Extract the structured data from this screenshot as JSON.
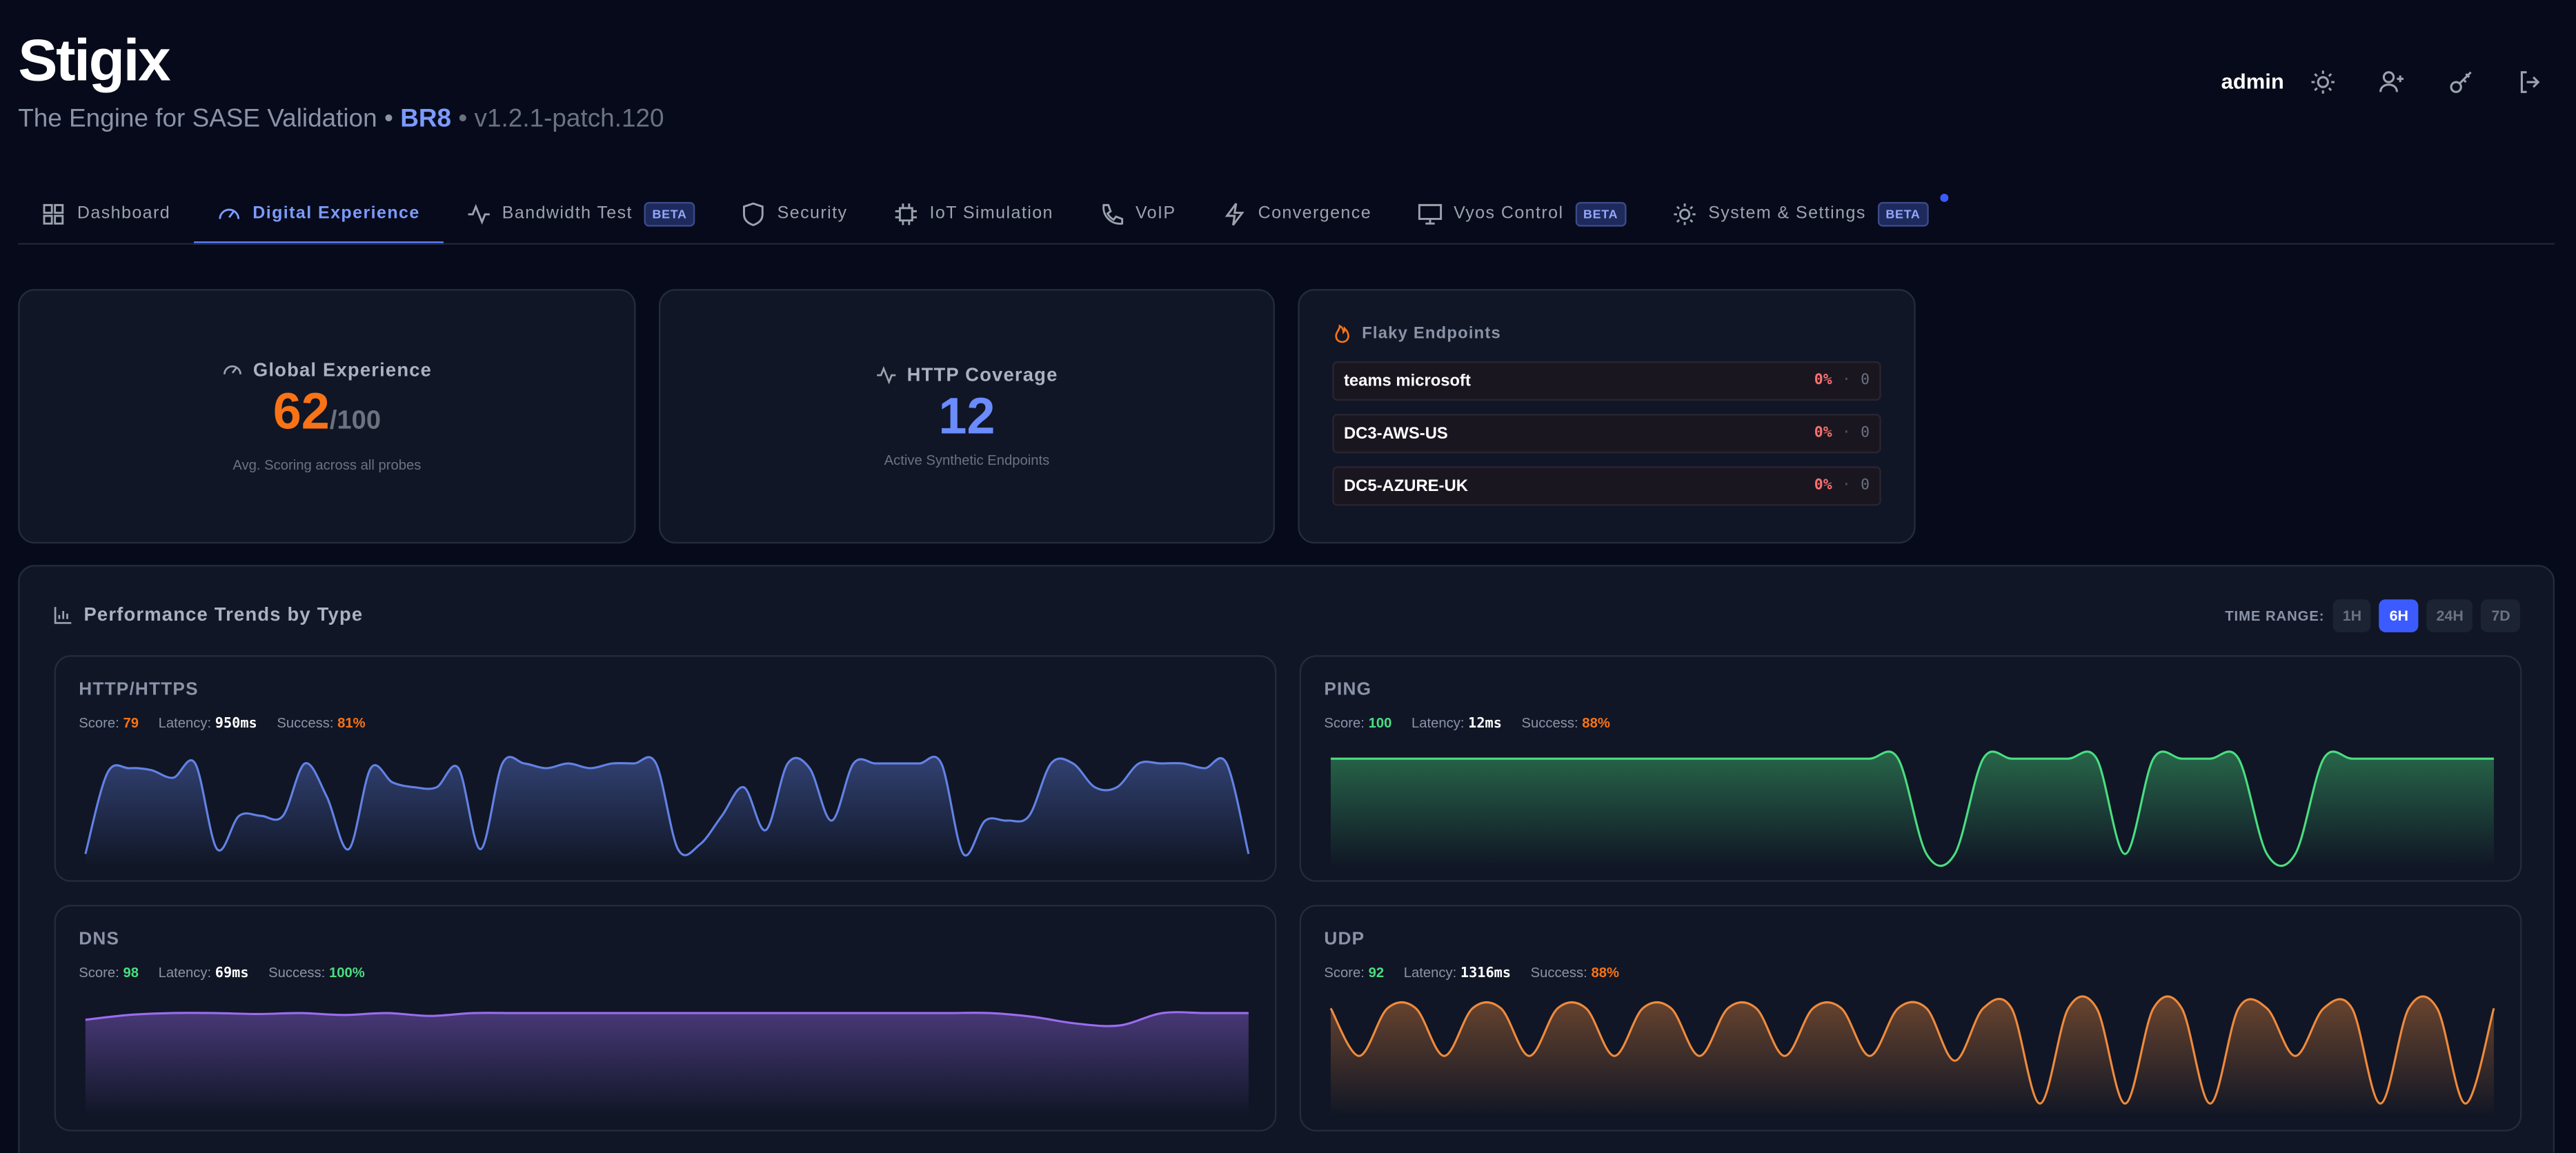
{
  "header": {
    "logo": "Stigix",
    "tagline": "The Engine for SASE Validation",
    "separator": "•",
    "site": "BR8",
    "version": "v1.2.1-patch.120",
    "user": "admin"
  },
  "nav": {
    "tabs": [
      {
        "label": "Dashboard"
      },
      {
        "label": "Digital Experience",
        "active": true
      },
      {
        "label": "Bandwidth Test",
        "badge": "BETA"
      },
      {
        "label": "Security"
      },
      {
        "label": "IoT Simulation"
      },
      {
        "label": "VoIP"
      },
      {
        "label": "Convergence"
      },
      {
        "label": "Vyos Control",
        "badge": "BETA"
      },
      {
        "label": "System & Settings",
        "badge": "BETA",
        "notification": true
      }
    ]
  },
  "summary": {
    "global_experience": {
      "title": "Global Experience",
      "score": 62,
      "max": "/100",
      "caption": "Avg. Scoring across all probes"
    },
    "http_coverage": {
      "title": "HTTP Coverage",
      "count": 12,
      "caption": "Active Synthetic Endpoints"
    },
    "flaky_endpoints": {
      "title": "Flaky Endpoints",
      "rate_separator": "·",
      "rows": [
        {
          "name": "teams microsoft",
          "rate": "0%",
          "count": 0
        },
        {
          "name": "DC3-AWS-US",
          "rate": "0%",
          "count": 0
        },
        {
          "name": "DC5-AZURE-UK",
          "rate": "0%",
          "count": 0
        }
      ]
    }
  },
  "performance": {
    "title": "Performance Trends by Type",
    "time_range_label": "TIME RANGE:",
    "ranges": [
      {
        "label": "1H"
      },
      {
        "label": "6H",
        "selected": true
      },
      {
        "label": "24H"
      },
      {
        "label": "7D"
      }
    ],
    "metric_labels": {
      "score": "Score:",
      "latency": "Latency:",
      "success": "Success:"
    },
    "panels": [
      {
        "name": "HTTP/HTTPS",
        "score": 79,
        "latency": "950ms",
        "success": "81%",
        "score_color": "#f97316",
        "success_color": "#f97316",
        "color": "#6382e6",
        "ylim": [
          0,
          100
        ],
        "values": [
          0,
          85,
          90,
          88,
          80,
          95,
          5,
          40,
          40,
          40,
          95,
          60,
          5,
          90,
          75,
          70,
          70,
          90,
          5,
          95,
          95,
          90,
          95,
          90,
          95,
          95,
          95,
          5,
          10,
          40,
          70,
          25,
          95,
          90,
          35,
          95,
          95,
          95,
          95,
          95,
          0,
          35,
          35,
          40,
          95,
          95,
          70,
          70,
          95,
          95,
          95,
          90,
          95,
          0
        ]
      },
      {
        "name": "PING",
        "score": 100,
        "latency": "12ms",
        "success": "88%",
        "score_color": "#4ade80",
        "success_color": "#f97316",
        "color": "#4ade80",
        "ylim": [
          0,
          100
        ],
        "values": [
          100,
          100,
          100,
          100,
          100,
          100,
          100,
          100,
          100,
          100,
          100,
          100,
          100,
          100,
          100,
          100,
          100,
          100,
          100,
          100,
          100,
          0,
          0,
          100,
          100,
          100,
          100,
          100,
          0,
          100,
          100,
          100,
          100,
          0,
          0,
          100,
          100,
          100,
          100,
          100,
          100,
          100
        ]
      },
      {
        "name": "DNS",
        "score": 98,
        "latency": "69ms",
        "success": "100%",
        "score_color": "#4ade80",
        "success_color": "#4ade80",
        "color": "#9b6cf0",
        "ylim": [
          0,
          100
        ],
        "values": [
          88,
          93,
          95,
          95,
          94,
          95,
          93,
          95,
          92,
          95,
          95,
          95,
          95,
          95,
          95,
          95,
          95,
          95,
          95,
          95,
          95,
          95,
          91,
          84,
          82,
          95,
          95,
          95
        ]
      },
      {
        "name": "UDP",
        "score": 92,
        "latency": "1316ms",
        "success": "88%",
        "score_color": "#4ade80",
        "success_color": "#f97316",
        "color": "#f08a3c",
        "ylim": [
          0,
          100
        ],
        "values": [
          100,
          50,
          100,
          100,
          50,
          100,
          100,
          50,
          100,
          100,
          50,
          100,
          100,
          50,
          100,
          100,
          50,
          100,
          100,
          50,
          100,
          100,
          45,
          100,
          100,
          0,
          100,
          100,
          0,
          100,
          100,
          0,
          100,
          100,
          50,
          100,
          100,
          0,
          100,
          100,
          0,
          100
        ]
      }
    ]
  }
}
